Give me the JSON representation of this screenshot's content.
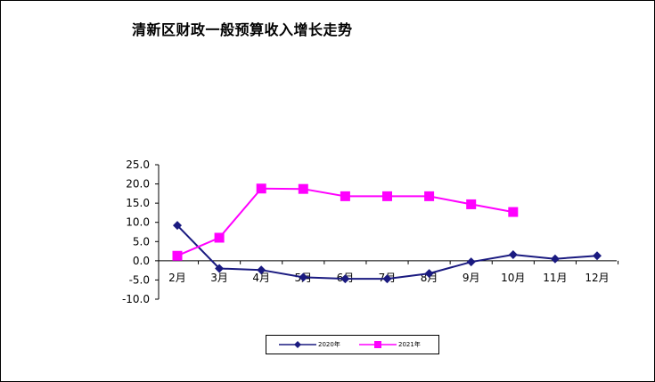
{
  "chart_data": {
    "type": "line",
    "title": "清新区财政一般预算收入增长走势",
    "categories": [
      "2月",
      "3月",
      "4月",
      "5月",
      "6月",
      "7月",
      "8月",
      "9月",
      "10月",
      "11月",
      "12月"
    ],
    "yticks": [
      "25.0",
      "20.0",
      "15.0",
      "10.0",
      "5.0",
      "0.0",
      "-5.0",
      "-10.0"
    ],
    "ylim": [
      -10,
      25
    ],
    "grid": false,
    "legend_position": "bottom",
    "series": [
      {
        "name": "2020年",
        "color": "#1a1a80",
        "marker": "diamond",
        "values": [
          9.2,
          -2.0,
          -2.4,
          -4.3,
          -4.7,
          -4.7,
          -3.3,
          -0.3,
          1.6,
          0.5,
          1.3
        ]
      },
      {
        "name": "2021年",
        "color": "#ff00ff",
        "marker": "square",
        "values": [
          1.3,
          6.0,
          18.8,
          18.7,
          16.8,
          16.8,
          16.8,
          14.7,
          12.7,
          null,
          null
        ]
      }
    ]
  }
}
